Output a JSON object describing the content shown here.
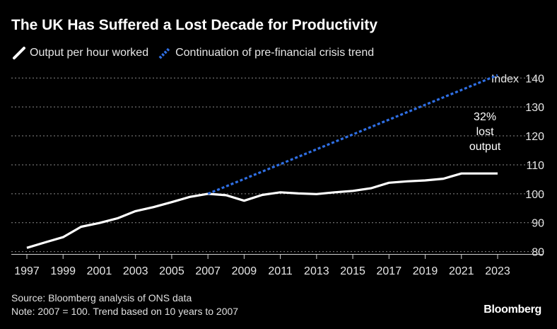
{
  "title": "The UK Has Suffered a Lost Decade for Productivity",
  "legend": [
    {
      "label": "Output per hour worked",
      "color": "#ffffff",
      "style": "solid"
    },
    {
      "label": "Continuation of pre-financial crisis trend",
      "color": "#2f6fe4",
      "style": "dotted"
    }
  ],
  "footer": {
    "source": "Source: Bloomberg analysis of ONS data",
    "note": "Note: 2007 = 100. Trend based on 10 years to 2007"
  },
  "brand": "Bloomberg",
  "chart_data": {
    "type": "line",
    "title": "The UK Has Suffered a Lost Decade for Productivity",
    "xlabel": "",
    "ylabel": "Index",
    "xlim": [
      1997,
      2023
    ],
    "ylim": [
      76,
      143
    ],
    "y_ticks": [
      80,
      90,
      100,
      110,
      120,
      130,
      140
    ],
    "x_ticks": [
      1997,
      1999,
      2001,
      2003,
      2005,
      2007,
      2009,
      2011,
      2013,
      2015,
      2017,
      2019,
      2021,
      2023
    ],
    "y_unit_label": "Index",
    "grid": "horizontal dotted",
    "series": [
      {
        "name": "Output per hour worked",
        "x": [
          1997,
          1998,
          1999,
          2000,
          2001,
          2002,
          2003,
          2004,
          2005,
          2006,
          2007,
          2008,
          2009,
          2010,
          2011,
          2012,
          2013,
          2014,
          2015,
          2016,
          2017,
          2018,
          2019,
          2020,
          2021,
          2022,
          2023
        ],
        "values": [
          81.3,
          83.2,
          85.0,
          88.6,
          89.9,
          91.5,
          94.0,
          95.4,
          97.1,
          98.9,
          100.0,
          99.5,
          97.6,
          99.6,
          100.5,
          100.1,
          99.9,
          100.5,
          101.0,
          101.9,
          103.8,
          104.3,
          104.6,
          105.2,
          107.0,
          107.0,
          107.0
        ]
      },
      {
        "name": "Continuation of pre-financial crisis trend",
        "x": [
          2007,
          2023
        ],
        "values": [
          100.0,
          141.0
        ]
      }
    ],
    "annotations": [
      {
        "text": "32% lost output",
        "x": 2022.3,
        "y": 121.5
      }
    ]
  },
  "annotation_lines": [
    "32%",
    "lost",
    "output"
  ]
}
